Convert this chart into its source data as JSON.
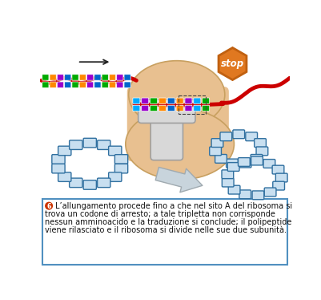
{
  "fig_width": 4.02,
  "fig_height": 3.74,
  "dpi": 100,
  "bg_color": "#ffffff",
  "illustration_bg": "#ffffff",
  "ribosome_color": "#e8c090",
  "ribosome_edge": "#c8a060",
  "ribosome_grad1": "#f0d0a0",
  "ribosome_grad2": "#d4a060",
  "mRNA_color": "#cc0000",
  "stop_color": "#e07820",
  "stop_edge": "#c06010",
  "stop_text": "stop",
  "subunit_fill_light": "#c8dff0",
  "subunit_fill_dark": "#5090c0",
  "subunit_edge": "#3070a0",
  "caption_border": "#5090c0",
  "caption_bg": "#ffffff",
  "bullet_color": "#cc3300",
  "bullet_number": "6",
  "caption_text_line1": "L’allungamento procede fino a che nel sito A del ribosoma si",
  "caption_text_line2": "trova un codone di arresto; a tale tripletta non corrisponde",
  "caption_text_line3": "nessun amminoacido e la traduzione si conclude; il polipeptide",
  "caption_text_line4": "viene rilasciato e il ribosoma si divide nelle sue due subunità.",
  "codon_colors_left": [
    "#00aa00",
    "#ff8800",
    "#9900cc",
    "#0066cc",
    "#00aa00",
    "#ff8800",
    "#9900cc",
    "#0066cc",
    "#00aa00",
    "#ff8800",
    "#9900cc",
    "#0066cc"
  ],
  "codon_colors_inside": [
    "#00aaff",
    "#9900cc",
    "#00aa00",
    "#ff8800",
    "#0066cc",
    "#ff8800",
    "#9900cc",
    "#00aaff",
    "#00aa00"
  ],
  "trna_color": "#d8d8d8",
  "trna_edge": "#a0a0a0",
  "arrow_fill": "#c8d4dc",
  "arrow_edge": "#a0aab0"
}
